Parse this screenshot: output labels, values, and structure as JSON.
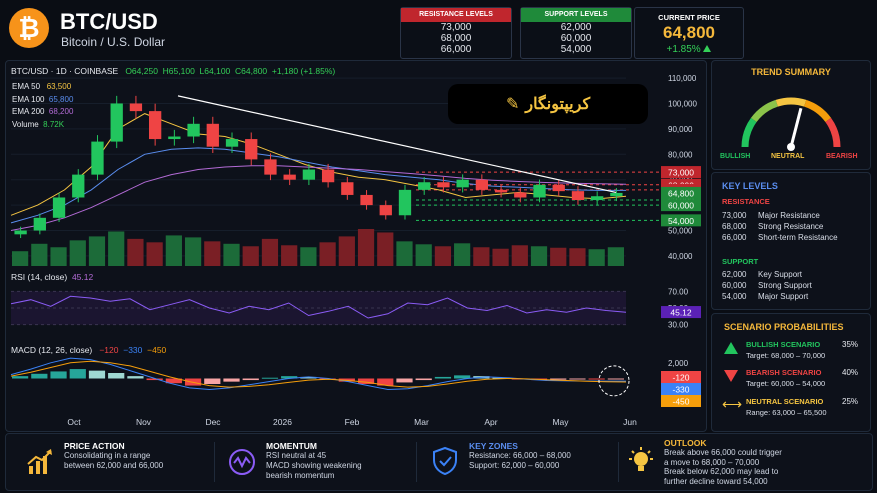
{
  "header": {
    "logo_symbol": "₿",
    "title": "BTC/USD",
    "subtitle": "Bitcoin / U.S. Dollar",
    "resistance_box": {
      "label": "RESISTANCE LEVELS",
      "values": [
        "73,000",
        "68,000",
        "66,000"
      ],
      "color": "#c0262d"
    },
    "support_box": {
      "label": "SUPPORT LEVELS",
      "values": [
        "62,000",
        "60,000",
        "54,000"
      ],
      "color": "#1f8a3a"
    },
    "current": {
      "label": "CURRENT PRICE",
      "price": "64,800",
      "change": "+1.85%"
    }
  },
  "chart_info": {
    "symbol": "BTC/USD · 1D · COINBASE",
    "open": "O64,250",
    "high": "H65,100",
    "low": "L64,100",
    "close": "C64,800",
    "change": "+1,180 (+1.85%)",
    "emas": [
      {
        "label": "EMA 50",
        "value": "63,500",
        "color": "#f5c542"
      },
      {
        "label": "EMA 100",
        "value": "65,800",
        "color": "#5a8dee"
      },
      {
        "label": "EMA 200",
        "value": "68,200",
        "color": "#b36bd6"
      }
    ],
    "volume_label": "Volume",
    "volume_value": "8.72K",
    "watermark": "کریپتونگار"
  },
  "chart_data": [
    {
      "type": "line",
      "name": "price",
      "x_ticks": [
        "Oct",
        "Nov",
        "Dec",
        "2026",
        "Feb",
        "Mar",
        "Apr",
        "May",
        "Jun"
      ],
      "y_ticks": [
        110000,
        100000,
        90000,
        80000,
        70000,
        60000,
        50000,
        40000
      ],
      "ylim": [
        38000,
        112000
      ],
      "resistance_lines": [
        73000,
        68000,
        66000
      ],
      "support_lines": [
        62000,
        60000,
        54000
      ],
      "current_price": 64800,
      "series": [
        {
          "name": "EMA 50",
          "values": [
            56000,
            60000,
            66000,
            75000,
            90000,
            96000,
            92000,
            88000,
            87000,
            84000,
            80000,
            76000,
            73000,
            71000,
            70000,
            68000,
            66000,
            63000,
            64000,
            65000,
            64000,
            63000,
            62500,
            63500
          ]
        },
        {
          "name": "EMA 100",
          "values": [
            53000,
            56000,
            60000,
            66000,
            74000,
            80000,
            82000,
            82500,
            82000,
            80500,
            79000,
            77000,
            75000,
            73500,
            72000,
            71000,
            70000,
            68500,
            67500,
            67000,
            66500,
            66000,
            65800,
            65800
          ]
        },
        {
          "name": "EMA 200",
          "values": [
            50000,
            52000,
            55000,
            59000,
            64000,
            69000,
            72000,
            74000,
            75000,
            75500,
            75500,
            75000,
            74500,
            74000,
            73200,
            72400,
            71500,
            70500,
            69800,
            69300,
            68900,
            68600,
            68400,
            68200
          ]
        }
      ],
      "close": [
        50000,
        55000,
        63000,
        72000,
        85000,
        100000,
        97000,
        86000,
        87000,
        92000,
        83000,
        86000,
        78000,
        72000,
        70000,
        74000,
        69000,
        64000,
        60000,
        56000,
        66000,
        69000,
        67000,
        70000,
        66000,
        65000,
        63000,
        68000,
        65500,
        62000,
        63500,
        64800
      ],
      "volume": [
        30,
        45,
        38,
        52,
        60,
        70,
        55,
        48,
        62,
        58,
        50,
        45,
        40,
        55,
        42,
        38,
        48,
        60,
        75,
        68,
        50,
        44,
        40,
        46,
        38,
        35,
        42,
        40,
        37,
        36,
        34,
        38
      ],
      "trendline": {
        "from": 103000,
        "to": 65000
      }
    },
    {
      "type": "line",
      "name": "RSI",
      "label": "RSI (14, close)",
      "value": "45.12",
      "y_ticks": [
        70,
        50,
        30
      ],
      "ylim": [
        20,
        80
      ],
      "values": [
        55,
        60,
        52,
        64,
        62,
        58,
        61,
        48,
        54,
        60,
        50,
        44,
        52,
        48,
        56,
        41,
        46,
        52,
        38,
        43,
        56,
        54,
        62,
        50,
        47,
        53,
        44,
        48,
        45,
        50,
        47,
        45
      ]
    },
    {
      "type": "bar",
      "name": "MACD",
      "label": "MACD (12, 26, close)",
      "values_text": [
        "−120",
        "−330",
        "−450"
      ],
      "value_colors": [
        "#ef4444",
        "#3b82f6",
        "#f59e0b"
      ],
      "y_ticks": [
        2000,
        0,
        -2000
      ],
      "ylim": [
        -3500,
        3500
      ],
      "histogram": [
        300,
        600,
        900,
        1200,
        1000,
        700,
        300,
        -200,
        -600,
        -900,
        -700,
        -400,
        -200,
        100,
        300,
        200,
        -100,
        -400,
        -700,
        -900,
        -500,
        -200,
        200,
        400,
        300,
        100,
        -100,
        -200,
        -150,
        -100,
        -130,
        -120
      ],
      "macd": [
        500,
        1200,
        2000,
        2600,
        2400,
        1800,
        1000,
        200,
        -600,
        -1200,
        -1400,
        -1200,
        -800,
        -400,
        0,
        200,
        0,
        -400,
        -900,
        -1400,
        -1300,
        -900,
        -400,
        0,
        200,
        100,
        -100,
        -250,
        -300,
        -320,
        -330,
        -330
      ],
      "signal": [
        300,
        800,
        1400,
        2000,
        2200,
        2000,
        1600,
        900,
        200,
        -400,
        -900,
        -1100,
        -1000,
        -800,
        -500,
        -200,
        -100,
        -250,
        -500,
        -900,
        -1100,
        -1000,
        -700,
        -350,
        -100,
        0,
        -50,
        -150,
        -250,
        -350,
        -420,
        -450
      ]
    }
  ],
  "trend_summary": {
    "title": "TREND SUMMARY",
    "labels": [
      "BULLISH",
      "NEUTRAL",
      "BEARISH"
    ],
    "label_colors": [
      "#22c55e",
      "#f5c542",
      "#ef4444"
    ],
    "needle_level": 0.58
  },
  "key_levels": {
    "title": "KEY LEVELS",
    "resistance_label": "RESISTANCE",
    "resistance": [
      {
        "value": "73,000",
        "desc": "Major Resistance"
      },
      {
        "value": "68,000",
        "desc": "Strong Resistance"
      },
      {
        "value": "66,000",
        "desc": "Short-term Resistance"
      }
    ],
    "support_label": "SUPPORT",
    "support": [
      {
        "value": "62,000",
        "desc": "Key Support"
      },
      {
        "value": "60,000",
        "desc": "Strong Support"
      },
      {
        "value": "54,000",
        "desc": "Major Support"
      }
    ]
  },
  "scenarios": {
    "title": "SCENARIO PROBABILITIES",
    "items": [
      {
        "name": "BULLISH SCENARIO",
        "pct": "35%",
        "desc": "Target: 68,000 – 70,000",
        "color": "#22c55e"
      },
      {
        "name": "BEARISH SCENARIO",
        "pct": "40%",
        "desc": "Target: 60,000 – 54,000",
        "color": "#ef4444"
      },
      {
        "name": "NEUTRAL SCENARIO",
        "pct": "25%",
        "desc": "Range: 63,000 – 65,500",
        "color": "#f5c542"
      }
    ]
  },
  "bottom": [
    {
      "icon": "chart-up-icon",
      "title": "PRICE ACTION",
      "lines": [
        "Consolidating in a range",
        "between 62,000 and 66,000"
      ]
    },
    {
      "icon": "wave-icon",
      "title": "MOMENTUM",
      "lines": [
        "RSI neutral at 45",
        "MACD showing weakening",
        "bearish momentum"
      ]
    },
    {
      "icon": "shield-icon",
      "title": "KEY ZONES",
      "lines": [
        "Resistance: 66,000 – 68,000",
        "Support: 62,000 – 60,000"
      ]
    },
    {
      "icon": "bulb-icon",
      "title": "OUTLOOK",
      "lines": [
        "Break above 66,000 could trigger",
        "a move to 68,000 – 70,000",
        "Break below 62,000 may lead to",
        "further decline toward 54,000"
      ]
    }
  ]
}
